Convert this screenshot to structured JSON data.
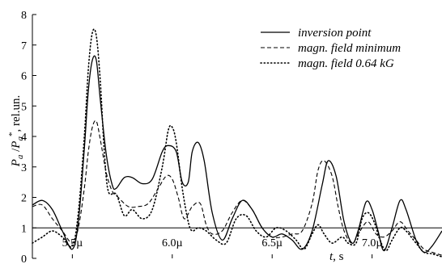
{
  "chart_data": {
    "type": "line",
    "title": "",
    "xlabel": "t, s",
    "ylabel": "P_a/P_a*, rel.un.",
    "ylim": [
      0,
      8
    ],
    "xlim": [
      5.3e-06,
      7.35e-06
    ],
    "y_ticks": [
      0,
      1,
      2,
      3,
      4,
      5,
      6,
      7,
      8
    ],
    "x_ticks": [
      {
        "value": 5.5e-06,
        "label": "5.5µ"
      },
      {
        "value": 6e-06,
        "label": "6.0µ"
      },
      {
        "value": 6.5e-06,
        "label": "6.5µ"
      },
      {
        "value": 7e-06,
        "label": "7.0µ"
      }
    ],
    "reference_line": 1,
    "legend_position": "top-right",
    "series": [
      {
        "name": "inversion point",
        "style": "solid",
        "points": [
          [
            5.3e-06,
            1.75
          ],
          [
            5.35e-06,
            1.9
          ],
          [
            5.4e-06,
            1.6
          ],
          [
            5.45e-06,
            0.9
          ],
          [
            5.5e-06,
            0.3
          ],
          [
            5.53e-06,
            1.2
          ],
          [
            5.56e-06,
            3.6
          ],
          [
            5.58e-06,
            5.5
          ],
          [
            5.6e-06,
            6.5
          ],
          [
            5.62e-06,
            6.5
          ],
          [
            5.64e-06,
            5.2
          ],
          [
            5.67e-06,
            3.4
          ],
          [
            5.7e-06,
            2.4
          ],
          [
            5.72e-06,
            2.3
          ],
          [
            5.76e-06,
            2.65
          ],
          [
            5.8e-06,
            2.65
          ],
          [
            5.85e-06,
            2.45
          ],
          [
            5.9e-06,
            2.6
          ],
          [
            5.95e-06,
            3.5
          ],
          [
            5.98e-06,
            3.7
          ],
          [
            6.02e-06,
            3.5
          ],
          [
            6.05e-06,
            2.5
          ],
          [
            6.08e-06,
            2.5
          ],
          [
            6.1e-06,
            3.5
          ],
          [
            6.13e-06,
            3.8
          ],
          [
            6.16e-06,
            3.2
          ],
          [
            6.2e-06,
            1.5
          ],
          [
            6.25e-06,
            0.6
          ],
          [
            6.3e-06,
            1.3
          ],
          [
            6.35e-06,
            1.9
          ],
          [
            6.4e-06,
            1.6
          ],
          [
            6.45e-06,
            1.0
          ],
          [
            6.5e-06,
            0.7
          ],
          [
            6.55e-06,
            0.8
          ],
          [
            6.6e-06,
            0.6
          ],
          [
            6.65e-06,
            0.3
          ],
          [
            6.7e-06,
            0.9
          ],
          [
            6.75e-06,
            2.4
          ],
          [
            6.78e-06,
            3.2
          ],
          [
            6.82e-06,
            2.7
          ],
          [
            6.86e-06,
            1.2
          ],
          [
            6.9e-06,
            0.5
          ],
          [
            6.93e-06,
            0.9
          ],
          [
            6.97e-06,
            1.85
          ],
          [
            7e-06,
            1.6
          ],
          [
            7.03e-06,
            0.9
          ],
          [
            7.06e-06,
            0.25
          ],
          [
            7.1e-06,
            1.0
          ],
          [
            7.14e-06,
            1.9
          ],
          [
            7.17e-06,
            1.6
          ],
          [
            7.22e-06,
            0.6
          ],
          [
            7.26e-06,
            0.2
          ],
          [
            7.3e-06,
            0.4
          ],
          [
            7.35e-06,
            0.9
          ]
        ]
      },
      {
        "name": "magn. field minimum",
        "style": "dashed",
        "points": [
          [
            5.3e-06,
            1.7
          ],
          [
            5.35e-06,
            1.75
          ],
          [
            5.4e-06,
            1.3
          ],
          [
            5.45e-06,
            0.9
          ],
          [
            5.5e-06,
            0.5
          ],
          [
            5.53e-06,
            1.0
          ],
          [
            5.56e-06,
            2.3
          ],
          [
            5.58e-06,
            3.5
          ],
          [
            5.6e-06,
            4.3
          ],
          [
            5.62e-06,
            4.5
          ],
          [
            5.64e-06,
            3.9
          ],
          [
            5.67e-06,
            2.8
          ],
          [
            5.7e-06,
            2.2
          ],
          [
            5.73e-06,
            2.0
          ],
          [
            5.78e-06,
            1.7
          ],
          [
            5.83e-06,
            1.7
          ],
          [
            5.88e-06,
            1.8
          ],
          [
            5.93e-06,
            2.3
          ],
          [
            5.97e-06,
            2.7
          ],
          [
            6e-06,
            2.6
          ],
          [
            6.03e-06,
            2.0
          ],
          [
            6.06e-06,
            1.3
          ],
          [
            6.1e-06,
            1.7
          ],
          [
            6.14e-06,
            1.8
          ],
          [
            6.17e-06,
            1.1
          ],
          [
            6.2e-06,
            0.8
          ],
          [
            6.25e-06,
            0.9
          ],
          [
            6.3e-06,
            1.5
          ],
          [
            6.35e-06,
            1.9
          ],
          [
            6.4e-06,
            1.6
          ],
          [
            6.45e-06,
            1.0
          ],
          [
            6.5e-06,
            0.7
          ],
          [
            6.55e-06,
            0.7
          ],
          [
            6.6e-06,
            0.8
          ],
          [
            6.65e-06,
            0.9
          ],
          [
            6.7e-06,
            1.8
          ],
          [
            6.73e-06,
            2.9
          ],
          [
            6.76e-06,
            3.2
          ],
          [
            6.8e-06,
            2.7
          ],
          [
            6.83e-06,
            1.7
          ],
          [
            6.86e-06,
            0.9
          ],
          [
            6.9e-06,
            0.5
          ],
          [
            6.94e-06,
            0.9
          ],
          [
            6.98e-06,
            1.2
          ],
          [
            7.02e-06,
            0.8
          ],
          [
            7.06e-06,
            0.7
          ],
          [
            7.1e-06,
            0.9
          ],
          [
            7.14e-06,
            1.2
          ],
          [
            7.18e-06,
            0.9
          ],
          [
            7.22e-06,
            0.6
          ],
          [
            7.26e-06,
            0.3
          ],
          [
            7.3e-06,
            0.2
          ],
          [
            7.35e-06,
            0.1
          ]
        ]
      },
      {
        "name": "magn. field 0.64 kG",
        "style": "dotted",
        "points": [
          [
            5.3e-06,
            0.5
          ],
          [
            5.35e-06,
            0.7
          ],
          [
            5.4e-06,
            0.9
          ],
          [
            5.45e-06,
            0.7
          ],
          [
            5.5e-06,
            0.4
          ],
          [
            5.53e-06,
            1.5
          ],
          [
            5.56e-06,
            4.0
          ],
          [
            5.58e-06,
            6.2
          ],
          [
            5.6e-06,
            7.4
          ],
          [
            5.62e-06,
            7.3
          ],
          [
            5.64e-06,
            5.8
          ],
          [
            5.66e-06,
            3.5
          ],
          [
            5.68e-06,
            2.2
          ],
          [
            5.72e-06,
            2.1
          ],
          [
            5.76e-06,
            1.4
          ],
          [
            5.8e-06,
            1.6
          ],
          [
            5.85e-06,
            1.3
          ],
          [
            5.9e-06,
            1.6
          ],
          [
            5.95e-06,
            3.0
          ],
          [
            5.98e-06,
            4.2
          ],
          [
            6e-06,
            4.3
          ],
          [
            6.02e-06,
            3.8
          ],
          [
            6.05e-06,
            2.3
          ],
          [
            6.08e-06,
            1.2
          ],
          [
            6.1e-06,
            0.9
          ],
          [
            6.13e-06,
            1.0
          ],
          [
            6.17e-06,
            0.9
          ],
          [
            6.22e-06,
            0.6
          ],
          [
            6.27e-06,
            0.5
          ],
          [
            6.32e-06,
            1.3
          ],
          [
            6.37e-06,
            1.4
          ],
          [
            6.42e-06,
            0.9
          ],
          [
            6.47e-06,
            0.7
          ],
          [
            6.52e-06,
            1.0
          ],
          [
            6.57e-06,
            0.9
          ],
          [
            6.62e-06,
            0.6
          ],
          [
            6.66e-06,
            0.3
          ],
          [
            6.7e-06,
            0.8
          ],
          [
            6.73e-06,
            1.1
          ],
          [
            6.76e-06,
            0.8
          ],
          [
            6.8e-06,
            0.5
          ],
          [
            6.85e-06,
            0.7
          ],
          [
            6.88e-06,
            0.5
          ],
          [
            6.92e-06,
            0.5
          ],
          [
            6.95e-06,
            1.3
          ],
          [
            6.98e-06,
            1.5
          ],
          [
            7.01e-06,
            1.2
          ],
          [
            7.04e-06,
            0.6
          ],
          [
            7.07e-06,
            0.25
          ],
          [
            7.1e-06,
            0.6
          ],
          [
            7.14e-06,
            1.0
          ],
          [
            7.17e-06,
            0.9
          ],
          [
            7.22e-06,
            0.5
          ],
          [
            7.26e-06,
            0.2
          ],
          [
            7.3e-06,
            0.15
          ],
          [
            7.35e-06,
            0.05
          ]
        ]
      }
    ]
  }
}
